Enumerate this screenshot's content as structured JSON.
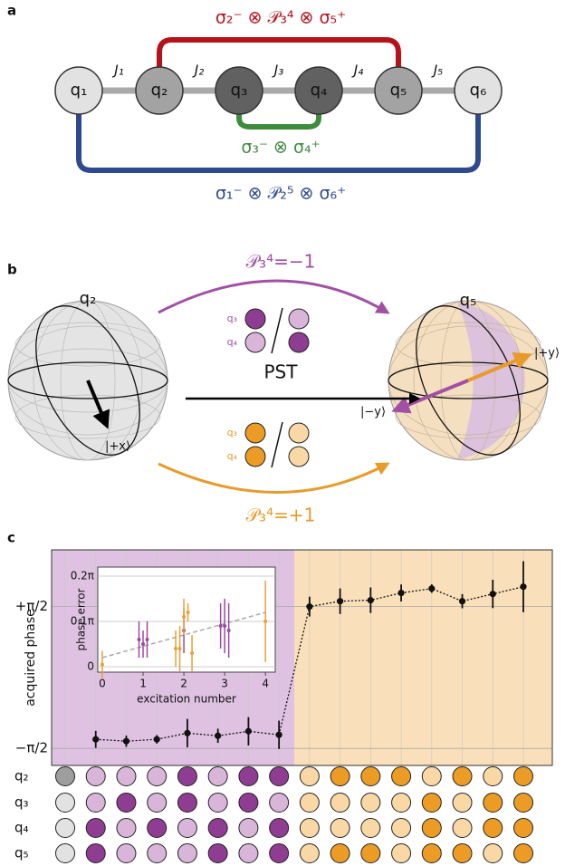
{
  "panel_a": {
    "label": "a",
    "nodes": [
      {
        "label": "q₁",
        "color": "#e2e2e2"
      },
      {
        "label": "q₂",
        "color": "#a3a3a3"
      },
      {
        "label": "q₃",
        "color": "#616161"
      },
      {
        "label": "q₄",
        "color": "#616161"
      },
      {
        "label": "q₅",
        "color": "#a3a3a3"
      },
      {
        "label": "q₆",
        "color": "#e2e2e2"
      }
    ],
    "couplings": [
      "J₁",
      "J₂",
      "J₃",
      "J₄",
      "J₅"
    ],
    "operators": [
      {
        "label": "σ₂⁻ ⊗ 𝒫₃⁴ ⊗ σ₅⁺",
        "color": "#b5121b"
      },
      {
        "label": "σ₃⁻ ⊗ σ₄⁺",
        "color": "#3d8b3d"
      },
      {
        "label": "σ₁⁻ ⊗ 𝒫₂⁵ ⊗ σ₆⁺",
        "color": "#2e4a8e"
      }
    ]
  },
  "panel_b": {
    "label": "b",
    "left_qubit": "q₂",
    "right_qubit": "q₅",
    "transfer": "PST",
    "top_condition": "𝒫₃⁴=−1",
    "bottom_condition": "𝒫₃⁴=+1",
    "state_labels": [
      "q₃",
      "q₄",
      "q₃",
      "q₄"
    ],
    "kets": {
      "left": "|+x⟩",
      "minus_y": "|−y⟩",
      "plus_y": "|+y⟩"
    }
  },
  "chart_data": {
    "type": "scatter",
    "label": "c",
    "ylabel": "acquired phase",
    "ylim": [
      -0.62,
      0.9
    ],
    "yticks": [
      {
        "value": -0.5,
        "label": "−π/2"
      },
      {
        "value": 0.5,
        "label": "+π/2"
      }
    ],
    "values": [
      null,
      -0.436,
      -0.449,
      -0.436,
      -0.392,
      -0.411,
      -0.379,
      -0.404,
      0.5,
      0.538,
      0.545,
      0.596,
      0.627,
      0.538,
      0.589,
      0.64
    ],
    "errors": [
      null,
      0.06,
      0.04,
      0.03,
      0.1,
      0.05,
      0.1,
      0.1,
      0.07,
      0.09,
      0.09,
      0.06,
      0.03,
      0.05,
      0.1,
      0.18
    ],
    "color": "#111111",
    "regions": [
      {
        "from": 0,
        "to": 7,
        "color": "#dfc2e2"
      },
      {
        "from": 8,
        "to": 15,
        "color": "#f9dfba"
      }
    ],
    "state_rows": [
      {
        "name": "q₂",
        "colors": [
          "#9e9e9e",
          "#d9b5da",
          "#d9b5da",
          "#d9b5da",
          "#8f3d92",
          "#d9b5da",
          "#8f3d92",
          "#8f3d92",
          "#fad8a6",
          "#ec9c25",
          "#ec9c25",
          "#ec9c25",
          "#fad8a6",
          "#ec9c25",
          "#fad8a6",
          "#ec9c25"
        ]
      },
      {
        "name": "q₃",
        "colors": [
          "#e2e2e2",
          "#d9b5da",
          "#8f3d92",
          "#d9b5da",
          "#8f3d92",
          "#d9b5da",
          "#8f3d92",
          "#d9b5da",
          "#fad8a6",
          "#fad8a6",
          "#fad8a6",
          "#fad8a6",
          "#ec9c25",
          "#fad8a6",
          "#ec9c25",
          "#ec9c25"
        ]
      },
      {
        "name": "q₄",
        "colors": [
          "#e2e2e2",
          "#8f3d92",
          "#d9b5da",
          "#8f3d92",
          "#d9b5da",
          "#8f3d92",
          "#d9b5da",
          "#8f3d92",
          "#fad8a6",
          "#fad8a6",
          "#fad8a6",
          "#fad8a6",
          "#ec9c25",
          "#fad8a6",
          "#ec9c25",
          "#ec9c25"
        ]
      },
      {
        "name": "q₅",
        "colors": [
          "#e2e2e2",
          "#8f3d92",
          "#d9b5da",
          "#d9b5da",
          "#d9b5da",
          "#8f3d92",
          "#d9b5da",
          "#8f3d92",
          "#fad8a6",
          "#ec9c25",
          "#ec9c25",
          "#fad8a6",
          "#ec9c25",
          "#ec9c25",
          "#fad8a6",
          "#ec9c25"
        ]
      }
    ],
    "inset": {
      "type": "scatter",
      "xlabel": "excitation number",
      "ylabel": "phase error",
      "xlim": [
        -0.11,
        4.24
      ],
      "xticks": [
        0,
        1,
        2,
        3,
        4
      ],
      "ylim": [
        -0.012,
        0.22
      ],
      "yticks": [
        0,
        {
          "value": 0.1,
          "label": "0.1π"
        },
        {
          "value": 0.2,
          "label": "0.2π"
        }
      ],
      "series": [
        {
          "color": "#9b4a9e",
          "x": [
            0.9,
            1.0,
            1.1,
            2.0,
            2.9,
            3.0,
            3.1
          ],
          "values": [
            0.06,
            0.05,
            0.06,
            0.08,
            0.09,
            0.09,
            0.08
          ],
          "errors": [
            0.04,
            0.03,
            0.04,
            0.05,
            0.05,
            0.06,
            0.06
          ]
        },
        {
          "color": "#eaa035",
          "x": [
            0,
            1.8,
            1.9,
            2.0,
            2.1,
            2.2,
            4.0
          ],
          "values": [
            0.005,
            0.04,
            0.04,
            0.11,
            0.12,
            0.03,
            0.1
          ],
          "errors": [
            0.03,
            0.04,
            0.05,
            0.04,
            0.02,
            0.04,
            0.09
          ]
        }
      ],
      "trend": {
        "x": [
          0,
          4
        ],
        "values": [
          0.02,
          0.12
        ],
        "color": "#aaaaaa"
      }
    }
  }
}
